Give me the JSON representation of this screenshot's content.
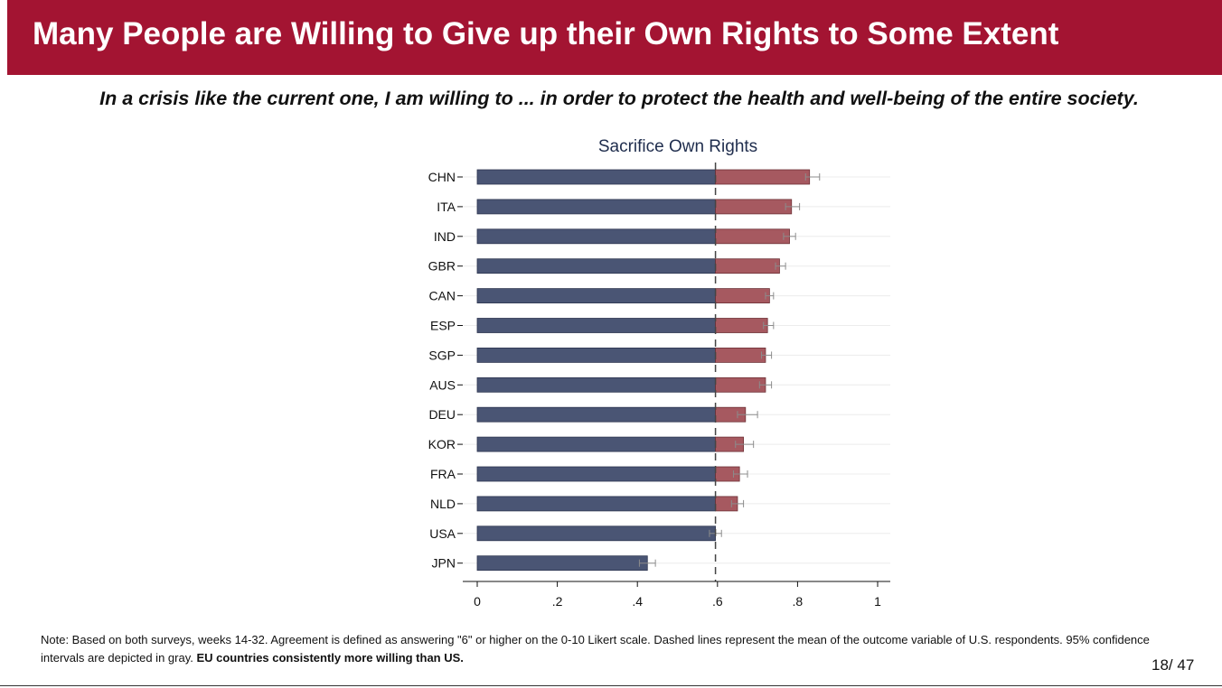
{
  "slide": {
    "title": "Many People are Willing to Give up their Own Rights to Some Extent",
    "subtitle": "In a crisis like the current one, I am willing to ... in order to protect the health and well-being of the entire society.",
    "note_text": "Note: Based on both surveys, weeks 14-32. Agreement is defined as answering \"6\" or higher on the 0-10 Likert scale. Dashed lines represent the mean of the outcome variable of U.S. respondents. 95% confidence intervals are depicted in gray. ",
    "note_bold": "EU countries consistently more willing than US.",
    "page_current": "18",
    "page_total": "/ 47"
  },
  "colors": {
    "header_bg": "#a31432",
    "below_mean": "#4a5574",
    "above_mean": "#a65960",
    "ci": "#8c8c8c"
  },
  "chart_data": {
    "type": "bar",
    "orientation": "horizontal",
    "title": "Sacrifice Own Rights",
    "xlabel": "",
    "ylabel": "",
    "xlim": [
      0,
      1
    ],
    "xticks": [
      0,
      0.2,
      0.4,
      0.6,
      0.8,
      1
    ],
    "xtick_labels": [
      "0",
      ".2",
      ".4",
      ".6",
      ".8",
      "1"
    ],
    "reference_line": {
      "label": "US mean",
      "value": 0.595,
      "style": "dashed"
    },
    "categories": [
      "CHN",
      "ITA",
      "IND",
      "GBR",
      "CAN",
      "ESP",
      "SGP",
      "AUS",
      "DEU",
      "KOR",
      "FRA",
      "NLD",
      "USA",
      "JPN"
    ],
    "values": [
      0.83,
      0.785,
      0.78,
      0.755,
      0.73,
      0.725,
      0.72,
      0.72,
      0.67,
      0.665,
      0.655,
      0.65,
      0.595,
      0.425
    ],
    "ci_low": [
      0.82,
      0.77,
      0.765,
      0.745,
      0.72,
      0.715,
      0.71,
      0.705,
      0.65,
      0.645,
      0.64,
      0.635,
      0.58,
      0.405
    ],
    "ci_high": [
      0.855,
      0.805,
      0.795,
      0.77,
      0.74,
      0.74,
      0.735,
      0.735,
      0.7,
      0.69,
      0.675,
      0.665,
      0.61,
      0.445
    ]
  }
}
